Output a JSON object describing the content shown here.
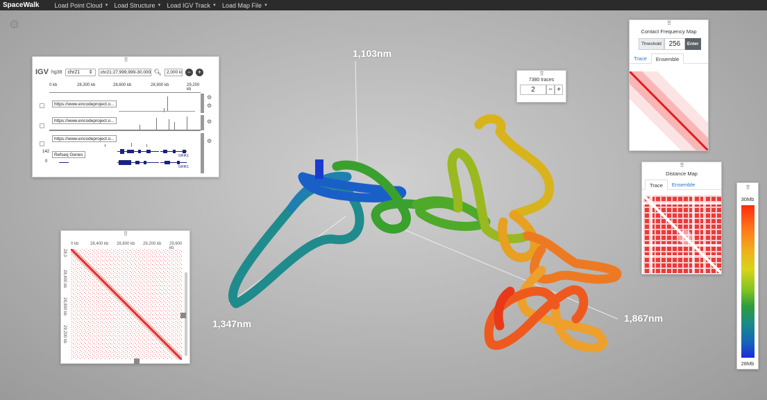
{
  "navbar": {
    "brand": "SpaceWalk",
    "menus": [
      "Load Point Cloud",
      "Load Structure",
      "Load IGV Track",
      "Load Map File"
    ]
  },
  "icons": {
    "settings": "gear-icon",
    "drag": "drag-handle-icon",
    "search": "search-icon",
    "zoom_out": "minus-circle-icon",
    "zoom_in": "plus-circle-icon"
  },
  "igv": {
    "logo": "IGV",
    "genome": "hg38",
    "chromosome": "chr21",
    "locus": "chr21:27,999,999-30,000,000",
    "width": "2,000 kb",
    "ruler_ticks": [
      "0 kb",
      "28,300 kb",
      "28,600 kb",
      "28,900 kb",
      "29,200 kb",
      "29,500 kb"
    ],
    "tracks": [
      "https://www.encodeproject.o...",
      "https://www.encodeproject.o...",
      "https://www.encodeproject.o...",
      "Refseq Genes"
    ],
    "gene_labels": [
      "GRIK1",
      "GRIK1"
    ],
    "row_nums": [
      "142",
      "0"
    ]
  },
  "hic": {
    "x_ticks": [
      "0 kb",
      "28,400 kb",
      "28,800 kb",
      "29,200 kb",
      "29,600 kb",
      "30,0"
    ],
    "y_ticks": [
      "28,0",
      "28,400 kb",
      "28,800 kb",
      "29,200 kb",
      "29,600 kb"
    ]
  },
  "trace_selector": {
    "count_label": "7380 traces",
    "value": "2",
    "minus": "−",
    "plus": "+"
  },
  "contact_map": {
    "title": "Contact Frequency Map",
    "threshold_label": "Threshold",
    "threshold": "256",
    "enter": "Enter",
    "tabs": [
      "Trace",
      "Ensemble"
    ],
    "active_tab": "Ensemble"
  },
  "distance_map": {
    "title": "Distance Map",
    "tabs": [
      "Trace",
      "Ensemble"
    ],
    "active_tab": "Trace"
  },
  "color_scale": {
    "top": "30Mb",
    "bottom": "28Mb",
    "colors": [
      "#ff2a10",
      "#f0b01c",
      "#7fc320",
      "#1b8a88",
      "#1b2bd8"
    ]
  },
  "distances": [
    "1,103nm",
    "1,347nm",
    "1,867nm"
  ]
}
